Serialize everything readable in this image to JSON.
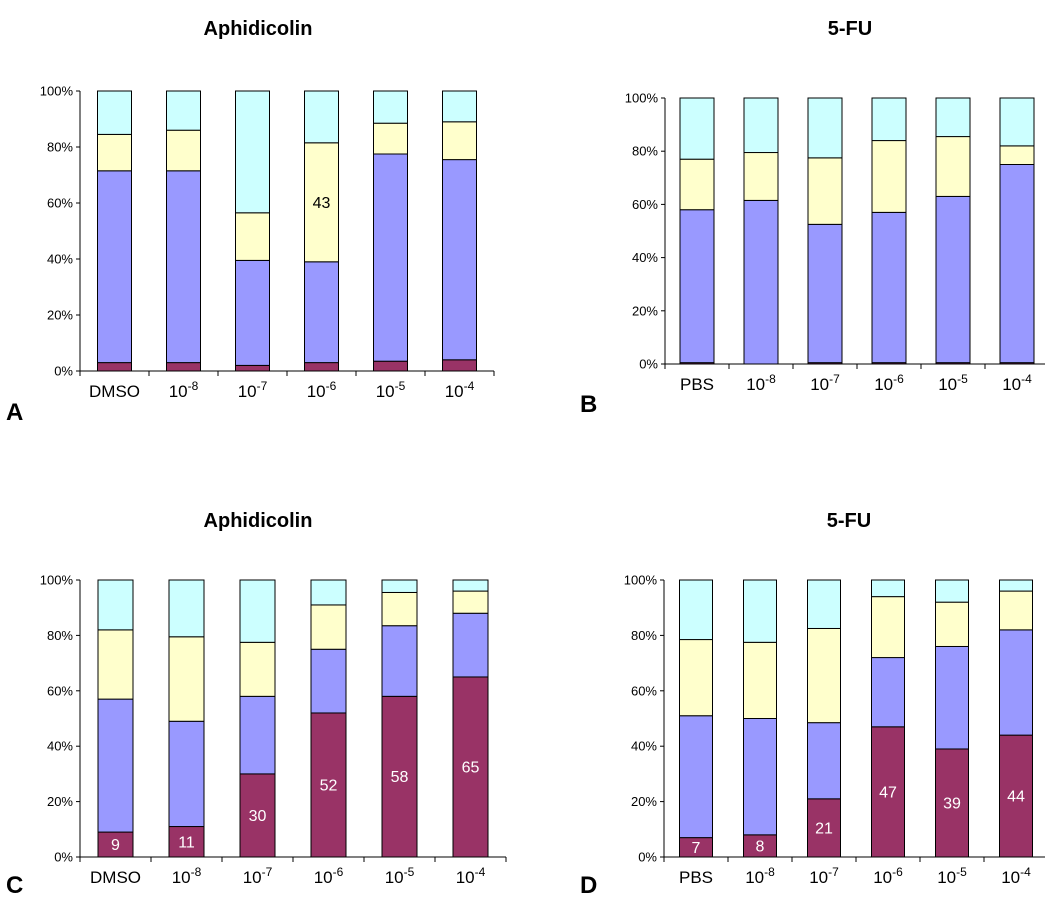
{
  "colors": {
    "segment_1": "#993366",
    "segment_2": "#9999ff",
    "segment_3": "#ffffcc",
    "segment_4": "#ccffff",
    "border": "#000000",
    "label_on_dark": "#ffffff",
    "label_on_light": "#000000"
  },
  "chart_data": [
    {
      "type": "bar",
      "stacked": true,
      "panel_letter": "A",
      "title": "Aphidicolin",
      "categories": [
        {
          "base": "DMSO",
          "exp": ""
        },
        {
          "base": "10",
          "exp": "-8"
        },
        {
          "base": "10",
          "exp": "-7"
        },
        {
          "base": "10",
          "exp": "-6"
        },
        {
          "base": "10",
          "exp": "-5"
        },
        {
          "base": "10",
          "exp": "-4"
        }
      ],
      "series": [
        {
          "values": [
            3,
            3,
            2,
            3,
            3.5,
            4
          ],
          "labels": [
            "",
            "",
            "",
            "",
            "",
            ""
          ]
        },
        {
          "values": [
            68.5,
            68.5,
            37.5,
            36,
            74,
            71.5
          ],
          "labels": [
            "",
            "",
            "",
            "",
            "",
            ""
          ]
        },
        {
          "values": [
            13,
            14.5,
            17,
            42.5,
            11,
            13.5
          ],
          "labels": [
            "",
            "",
            "",
            "43",
            "",
            ""
          ]
        },
        {
          "values": [
            15.5,
            14,
            43.5,
            18.5,
            11.5,
            11
          ],
          "labels": [
            "",
            "",
            "",
            "",
            "",
            ""
          ]
        }
      ],
      "y_ticks": [
        "0%",
        "20%",
        "40%",
        "60%",
        "80%",
        "100%"
      ],
      "ylim": [
        0,
        100
      ],
      "grid": false,
      "legend": false
    },
    {
      "type": "bar",
      "stacked": true,
      "panel_letter": "B",
      "title": "5-FU",
      "categories": [
        {
          "base": "PBS",
          "exp": ""
        },
        {
          "base": "10",
          "exp": "-8"
        },
        {
          "base": "10",
          "exp": "-7"
        },
        {
          "base": "10",
          "exp": "-6"
        },
        {
          "base": "10",
          "exp": "-5"
        },
        {
          "base": "10",
          "exp": "-4"
        }
      ],
      "series": [
        {
          "values": [
            0.5,
            0,
            0.5,
            0.5,
            0.5,
            0.5
          ],
          "labels": [
            "",
            "",
            "",
            "",
            "",
            ""
          ]
        },
        {
          "values": [
            57.5,
            61.5,
            52,
            56.5,
            62.5,
            74.5
          ],
          "labels": [
            "",
            "",
            "",
            "",
            "",
            ""
          ]
        },
        {
          "values": [
            19,
            18,
            25,
            27,
            22.5,
            7
          ],
          "labels": [
            "",
            "",
            "",
            "",
            "",
            ""
          ]
        },
        {
          "values": [
            23,
            20.5,
            22.5,
            16,
            14.5,
            18
          ],
          "labels": [
            "",
            "",
            "",
            "",
            "",
            ""
          ]
        }
      ],
      "y_ticks": [
        "0%",
        "20%",
        "40%",
        "60%",
        "80%",
        "100%"
      ],
      "ylim": [
        0,
        100
      ],
      "grid": false,
      "legend": false
    },
    {
      "type": "bar",
      "stacked": true,
      "panel_letter": "C",
      "title": "Aphidicolin",
      "categories": [
        {
          "base": "DMSO",
          "exp": ""
        },
        {
          "base": "10",
          "exp": "-8"
        },
        {
          "base": "10",
          "exp": "-7"
        },
        {
          "base": "10",
          "exp": "-6"
        },
        {
          "base": "10",
          "exp": "-5"
        },
        {
          "base": "10",
          "exp": "-4"
        }
      ],
      "series": [
        {
          "values": [
            9,
            11,
            30,
            52,
            58,
            65
          ],
          "labels": [
            "9",
            "11",
            "30",
            "52",
            "58",
            "65"
          ]
        },
        {
          "values": [
            48,
            38,
            28,
            23,
            25.5,
            23
          ],
          "labels": [
            "",
            "",
            "",
            "",
            "",
            ""
          ]
        },
        {
          "values": [
            25,
            30.5,
            19.5,
            16,
            12,
            8
          ],
          "labels": [
            "",
            "",
            "",
            "",
            "",
            ""
          ]
        },
        {
          "values": [
            18,
            20.5,
            22.5,
            9,
            4.5,
            4
          ],
          "labels": [
            "",
            "",
            "",
            "",
            "",
            ""
          ]
        }
      ],
      "y_ticks": [
        "0%",
        "20%",
        "40%",
        "60%",
        "80%",
        "100%"
      ],
      "ylim": [
        0,
        100
      ],
      "grid": false,
      "legend": false
    },
    {
      "type": "bar",
      "stacked": true,
      "panel_letter": "D",
      "title": "5-FU",
      "categories": [
        {
          "base": "PBS",
          "exp": ""
        },
        {
          "base": "10",
          "exp": "-8"
        },
        {
          "base": "10",
          "exp": "-7"
        },
        {
          "base": "10",
          "exp": "-6"
        },
        {
          "base": "10",
          "exp": "-5"
        },
        {
          "base": "10",
          "exp": "-4"
        }
      ],
      "series": [
        {
          "values": [
            7,
            8,
            21,
            47,
            39,
            44
          ],
          "labels": [
            "7",
            "8",
            "21",
            "47",
            "39",
            "44"
          ]
        },
        {
          "values": [
            44,
            42,
            27.5,
            25,
            37,
            38
          ],
          "labels": [
            "",
            "",
            "",
            "",
            "",
            ""
          ]
        },
        {
          "values": [
            27.5,
            27.5,
            34,
            22,
            16,
            14
          ],
          "labels": [
            "",
            "",
            "",
            "",
            "",
            ""
          ]
        },
        {
          "values": [
            21.5,
            22.5,
            17.5,
            6,
            8,
            4
          ],
          "labels": [
            "",
            "",
            "",
            "",
            "",
            ""
          ]
        }
      ],
      "y_ticks": [
        "0%",
        "20%",
        "40%",
        "60%",
        "80%",
        "100%"
      ],
      "ylim": [
        0,
        100
      ],
      "grid": false,
      "legend": false
    }
  ]
}
